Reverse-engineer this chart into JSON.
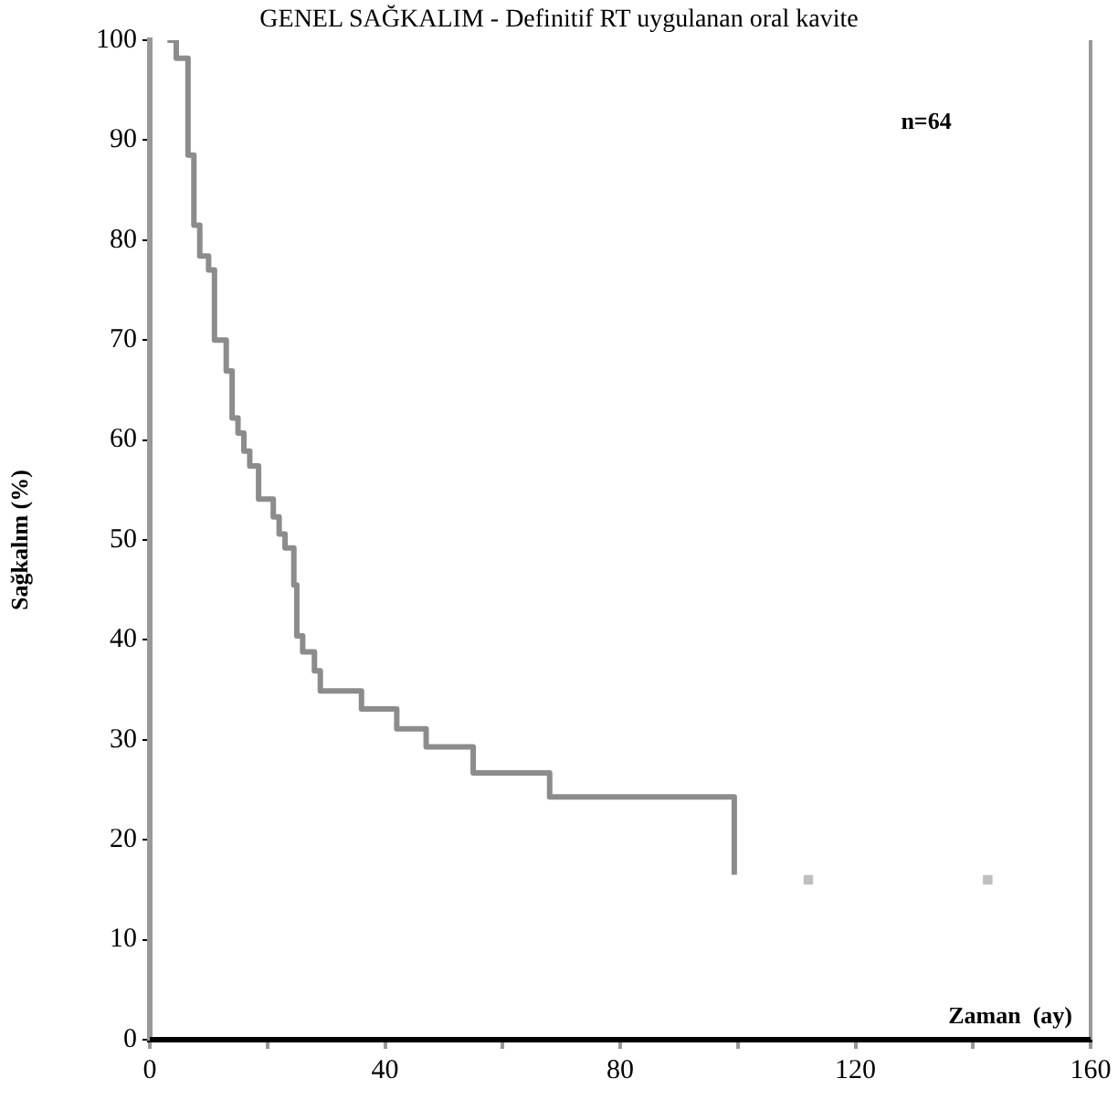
{
  "chart_data": {
    "type": "step",
    "title": "GENEL SAĞKALIM - Definitif RT uygulanan oral kavite",
    "xlabel": "Zaman  (ay)",
    "ylabel": "Sağkalım (%)",
    "series": [
      {
        "color": "#8c8c8c",
        "x": [
          3,
          4.5,
          6.5,
          7.5,
          8.5,
          10,
          11,
          13,
          14,
          15,
          16,
          17,
          18.5,
          21,
          22,
          23,
          24.5,
          25,
          26,
          28,
          29,
          36,
          42,
          47,
          55,
          68,
          99.4
        ],
        "values": [
          100,
          98.2,
          88.5,
          81.5,
          78.4,
          77,
          70,
          66.9,
          62.2,
          60.7,
          58.9,
          57.4,
          54.1,
          52.3,
          50.6,
          49.2,
          45.5,
          40.4,
          38.8,
          36.9,
          34.9,
          33.1,
          31.1,
          29.3,
          26.7,
          24.3,
          16.5
        ]
      },
      {
        "type": "scatter",
        "marker": "square",
        "color": "#bfbfbf",
        "x": [
          112,
          142.5
        ],
        "values": [
          16,
          16
        ]
      }
    ],
    "annotations": [
      "n=64"
    ],
    "xlim": [
      0,
      160
    ],
    "xticks": [
      0,
      {
        "value": 20,
        "label": null
      },
      40,
      {
        "value": 60,
        "label": null
      },
      80,
      {
        "value": 100,
        "label": null
      },
      120,
      {
        "value": 140,
        "label": null
      },
      160
    ],
    "ylim": [
      0,
      100
    ],
    "yticks": [
      0,
      10,
      20,
      30,
      40,
      50,
      60,
      70,
      80,
      90,
      100
    ],
    "grid": false,
    "legend": false
  }
}
